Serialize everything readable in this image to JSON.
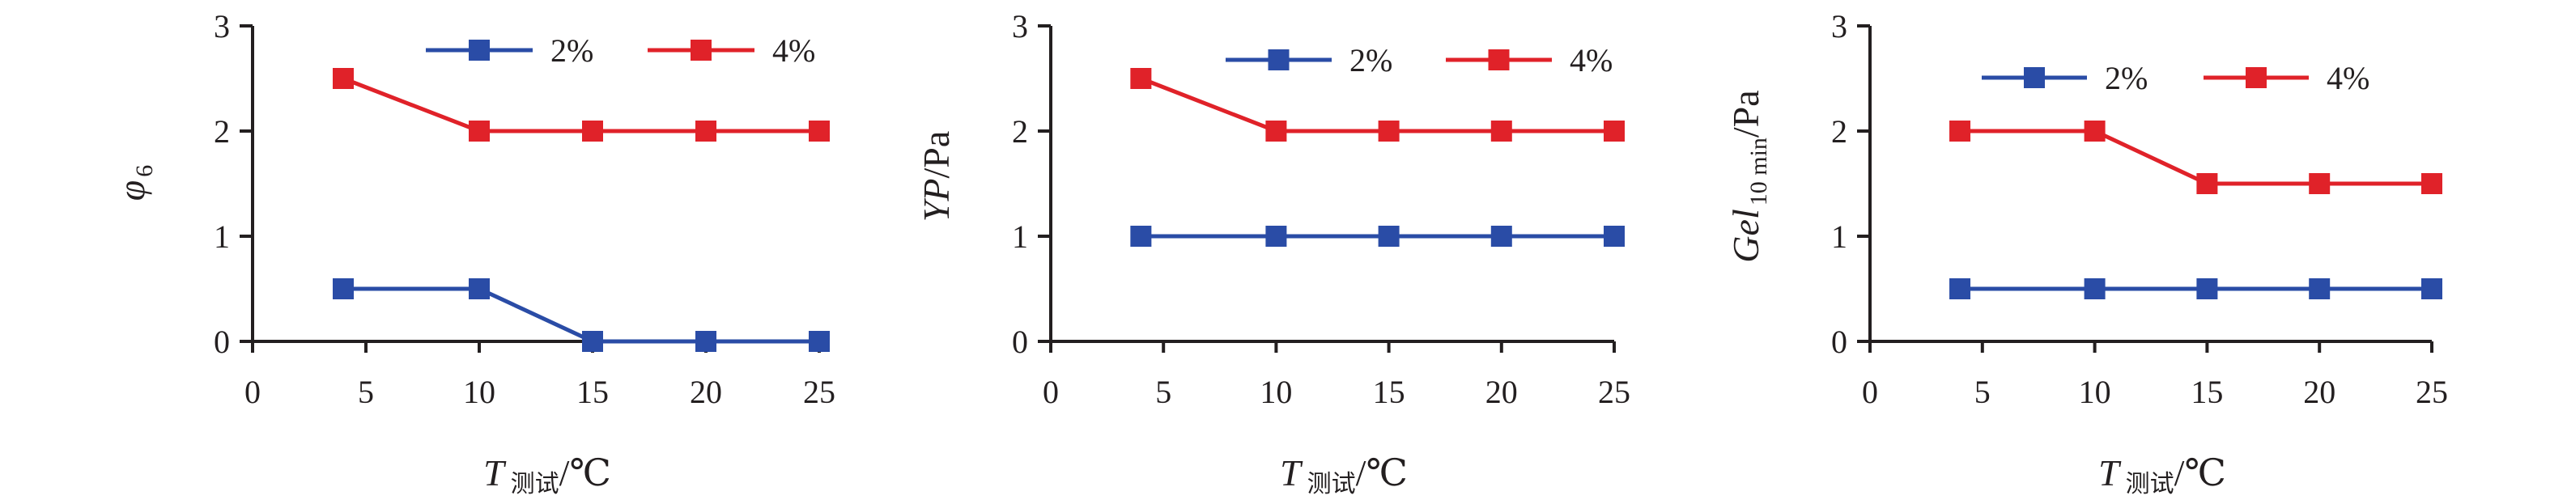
{
  "figure": {
    "colors": {
      "series_2pct": "#2a4ca6",
      "series_4pct": "#e02229",
      "axis": "#231f20"
    }
  },
  "chart_data": [
    {
      "type": "line",
      "panel": "phi6",
      "x": [
        4,
        10,
        15,
        20,
        25
      ],
      "xlim": [
        0,
        25
      ],
      "ylim": [
        0,
        3
      ],
      "xticks": [
        "0",
        "5",
        "10",
        "15",
        "20",
        "25"
      ],
      "yticks": [
        "0",
        "1",
        "2",
        "3"
      ],
      "ylabel": {
        "main": "φ",
        "sub": "6"
      },
      "xlabel": {
        "main": "T",
        "sub": "测试",
        "unit": "/℃"
      },
      "legend": "top-right",
      "grid": false,
      "series": [
        {
          "name": "2%",
          "color": "#2a4ca6",
          "values": [
            0.5,
            0.5,
            0,
            0,
            0
          ]
        },
        {
          "name": "4%",
          "color": "#e02229",
          "values": [
            2.5,
            2,
            2,
            2,
            2
          ]
        }
      ]
    },
    {
      "type": "line",
      "panel": "YP",
      "x": [
        4,
        10,
        15,
        20,
        25
      ],
      "xlim": [
        0,
        25
      ],
      "ylim": [
        0,
        3
      ],
      "xticks": [
        "0",
        "5",
        "10",
        "15",
        "20",
        "25"
      ],
      "yticks": [
        "0",
        "1",
        "2",
        "3"
      ],
      "ylabel": {
        "main": "YP",
        "unit": "/Pa"
      },
      "xlabel": {
        "main": "T",
        "sub": "测试",
        "unit": "/℃"
      },
      "legend": "top-right",
      "grid": false,
      "series": [
        {
          "name": "2%",
          "color": "#2a4ca6",
          "values": [
            1,
            1,
            1,
            1,
            1
          ]
        },
        {
          "name": "4%",
          "color": "#e02229",
          "values": [
            2.5,
            2,
            2,
            2,
            2
          ]
        }
      ]
    },
    {
      "type": "line",
      "panel": "Gel10min",
      "x": [
        4,
        10,
        15,
        20,
        25
      ],
      "xlim": [
        0,
        25
      ],
      "ylim": [
        0,
        3
      ],
      "xticks": [
        "0",
        "5",
        "10",
        "15",
        "20",
        "25"
      ],
      "yticks": [
        "0",
        "1",
        "2",
        "3"
      ],
      "ylabel": {
        "main": "Gel",
        "sub": "10 min",
        "unit": "/Pa"
      },
      "xlabel": {
        "main": "T",
        "sub": "测试",
        "unit": "/℃"
      },
      "legend": "top-right",
      "grid": false,
      "series": [
        {
          "name": "2%",
          "color": "#2a4ca6",
          "values": [
            0.5,
            0.5,
            0.5,
            0.5,
            0.5
          ]
        },
        {
          "name": "4%",
          "color": "#e02229",
          "values": [
            2,
            2,
            1.5,
            1.5,
            1.5
          ]
        }
      ]
    }
  ]
}
